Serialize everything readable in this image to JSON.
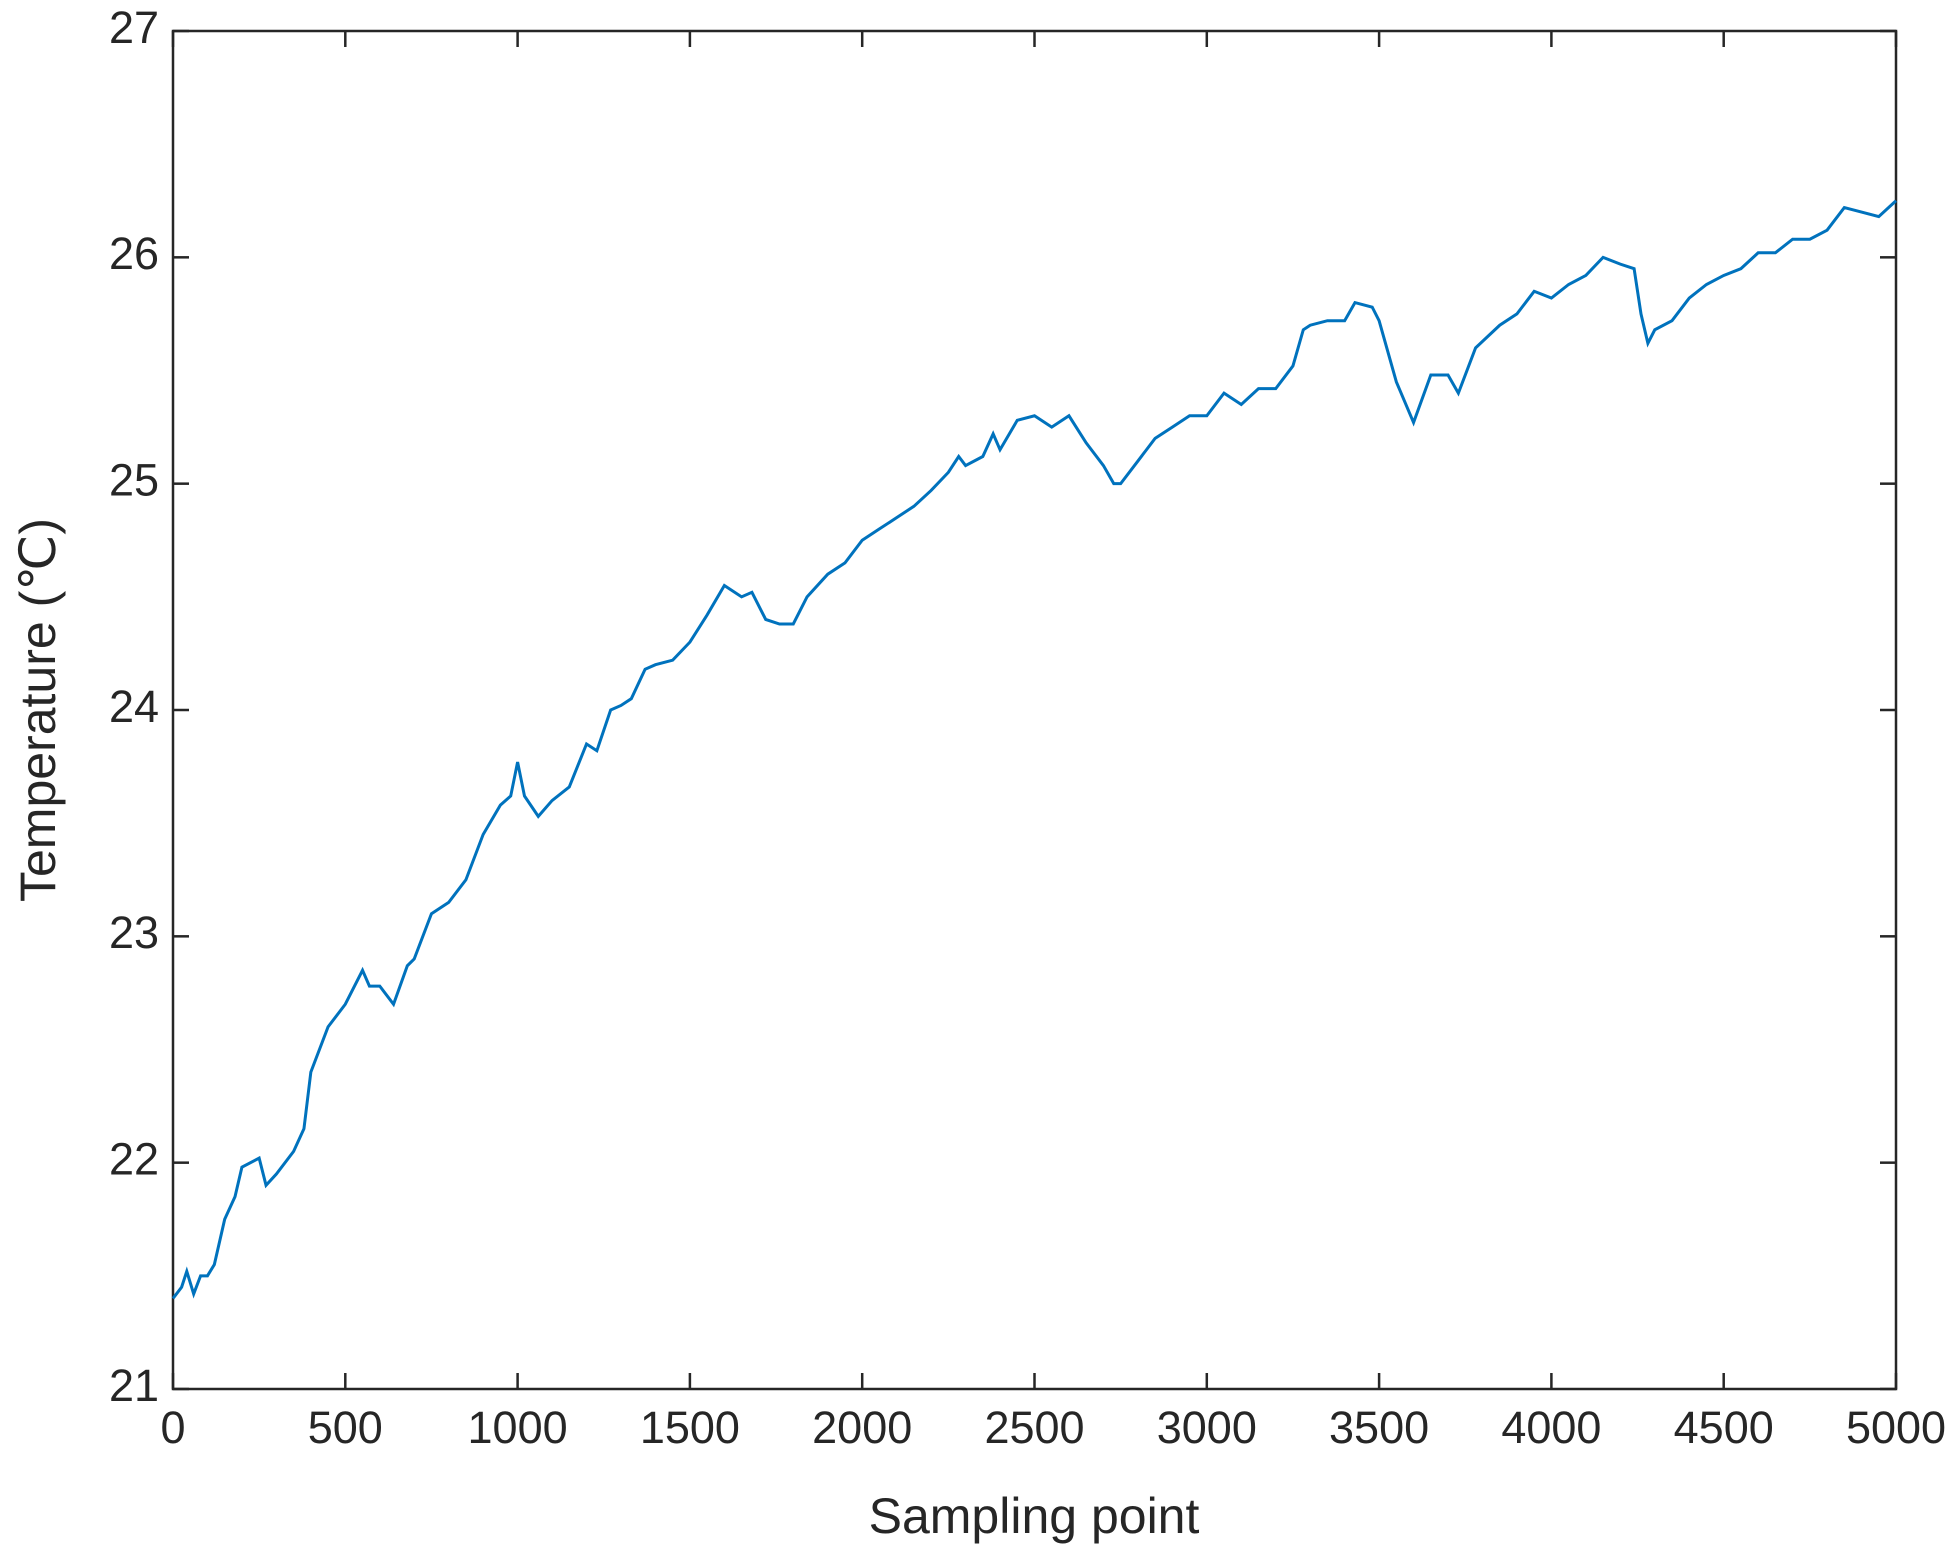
{
  "chart_data": {
    "type": "line",
    "xlabel": "Sampling point",
    "ylabel": "Temperature (℃)",
    "x": [
      0,
      25,
      40,
      60,
      80,
      100,
      120,
      150,
      180,
      200,
      250,
      270,
      300,
      350,
      380,
      400,
      450,
      500,
      550,
      570,
      600,
      640,
      680,
      700,
      750,
      800,
      850,
      900,
      950,
      980,
      1000,
      1020,
      1060,
      1100,
      1150,
      1200,
      1230,
      1270,
      1300,
      1330,
      1370,
      1400,
      1450,
      1500,
      1550,
      1600,
      1650,
      1680,
      1720,
      1760,
      1800,
      1840,
      1900,
      1950,
      2000,
      2050,
      2100,
      2150,
      2200,
      2250,
      2280,
      2300,
      2350,
      2380,
      2400,
      2450,
      2500,
      2550,
      2600,
      2650,
      2700,
      2730,
      2750,
      2800,
      2850,
      2900,
      2950,
      3000,
      3050,
      3100,
      3150,
      3200,
      3250,
      3280,
      3300,
      3350,
      3400,
      3430,
      3480,
      3500,
      3550,
      3600,
      3650,
      3700,
      3730,
      3780,
      3850,
      3900,
      3950,
      4000,
      4050,
      4100,
      4150,
      4200,
      4240,
      4260,
      4280,
      4300,
      4350,
      4400,
      4450,
      4500,
      4550,
      4600,
      4650,
      4700,
      4750,
      4800,
      4850,
      4900,
      4950,
      5000
    ],
    "series": [
      {
        "color": "#0072bd",
        "values": [
          21.4,
          21.45,
          21.52,
          21.42,
          21.5,
          21.5,
          21.55,
          21.75,
          21.85,
          21.98,
          22.02,
          21.9,
          21.95,
          22.05,
          22.15,
          22.4,
          22.6,
          22.7,
          22.85,
          22.78,
          22.78,
          22.7,
          22.87,
          22.9,
          23.1,
          23.15,
          23.25,
          23.45,
          23.58,
          23.62,
          23.77,
          23.62,
          23.53,
          23.6,
          23.66,
          23.85,
          23.82,
          24.0,
          24.02,
          24.05,
          24.18,
          24.2,
          24.22,
          24.3,
          24.42,
          24.55,
          24.5,
          24.52,
          24.4,
          24.38,
          24.38,
          24.5,
          24.6,
          24.65,
          24.75,
          24.8,
          24.85,
          24.9,
          24.97,
          25.05,
          25.12,
          25.08,
          25.12,
          25.22,
          25.15,
          25.28,
          25.3,
          25.25,
          25.3,
          25.18,
          25.08,
          25.0,
          25.0,
          25.1,
          25.2,
          25.25,
          25.3,
          25.3,
          25.4,
          25.35,
          25.42,
          25.42,
          25.52,
          25.68,
          25.7,
          25.72,
          25.72,
          25.8,
          25.78,
          25.72,
          25.45,
          25.27,
          25.48,
          25.48,
          25.4,
          25.6,
          25.7,
          25.75,
          25.85,
          25.82,
          25.88,
          25.92,
          26.0,
          25.97,
          25.95,
          25.75,
          25.62,
          25.68,
          25.72,
          25.82,
          25.88,
          25.92,
          25.95,
          26.02,
          26.02,
          26.08,
          26.08,
          26.12,
          26.22,
          26.2,
          26.18,
          26.25
        ]
      }
    ],
    "xlim": [
      0,
      5000
    ],
    "xticks": [
      0,
      500,
      1000,
      1500,
      2000,
      2500,
      3000,
      3500,
      4000,
      4500,
      5000
    ],
    "ylim": [
      21,
      27
    ],
    "yticks": [
      21,
      22,
      23,
      24,
      25,
      26,
      27
    ]
  }
}
